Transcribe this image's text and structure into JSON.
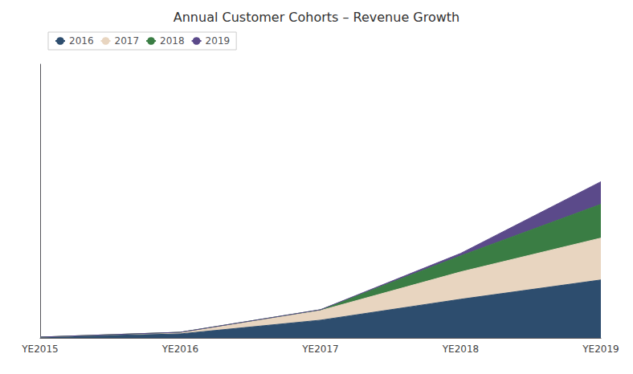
{
  "chart_data": {
    "type": "area",
    "title": "Annual Customer Cohorts – Revenue Growth",
    "categories": [
      "YE2015",
      "YE2016",
      "YE2017",
      "YE2018",
      "YE2019"
    ],
    "series": [
      {
        "name": "2016",
        "color": "#2d4d6e",
        "values": [
          1,
          5,
          22,
          48,
          72
        ]
      },
      {
        "name": "2017",
        "color": "#e8d5c0",
        "values": [
          0,
          2,
          12,
          34,
          52
        ]
      },
      {
        "name": "2018",
        "color": "#3a7d44",
        "values": [
          0,
          0,
          1,
          20,
          42
        ]
      },
      {
        "name": "2019",
        "color": "#5b4a8a",
        "values": [
          0,
          0,
          0,
          3,
          28
        ]
      }
    ],
    "ylim": [
      0,
      340
    ],
    "yticks": [],
    "stacked": true,
    "grid": false,
    "legend": "upper left",
    "tick_labels": "x"
  }
}
